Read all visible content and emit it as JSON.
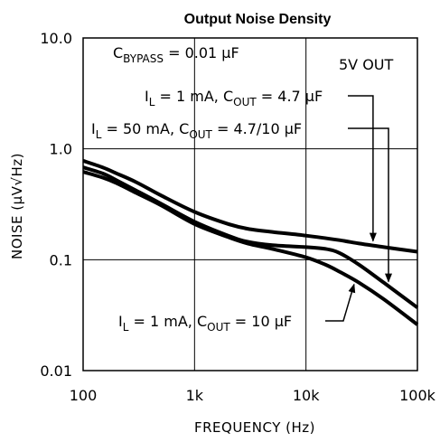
{
  "chart_data": {
    "type": "line",
    "title": "Output Noise Density",
    "xlabel": "FREQUENCY (Hz)",
    "ylabel": "NOISE (µV√Hz)",
    "x_scale": "log",
    "y_scale": "log",
    "xlim": [
      100,
      100000
    ],
    "ylim": [
      0.01,
      10
    ],
    "x_ticks": [
      "100",
      "1k",
      "10k",
      "100k"
    ],
    "y_ticks": [
      "0.01",
      "0.1",
      "1.0",
      "10.0"
    ],
    "grid": true,
    "series": [
      {
        "name": "IL = 1 mA, COUT = 4.7 µF",
        "x": [
          100,
          150,
          200,
          300,
          500,
          1000,
          2000,
          3000,
          5000,
          10000,
          20000,
          30000,
          50000,
          100000
        ],
        "y": [
          0.78,
          0.68,
          0.6,
          0.5,
          0.38,
          0.27,
          0.21,
          0.19,
          0.178,
          0.165,
          0.15,
          0.14,
          0.13,
          0.118
        ]
      },
      {
        "name": "IL = 50 mA, COUT = 4.7/10 µF",
        "x": [
          100,
          150,
          200,
          300,
          500,
          1000,
          2000,
          3000,
          5000,
          10000,
          15000,
          20000,
          30000,
          50000,
          100000
        ],
        "y": [
          0.68,
          0.6,
          0.52,
          0.42,
          0.32,
          0.22,
          0.165,
          0.145,
          0.135,
          0.13,
          0.125,
          0.115,
          0.09,
          0.062,
          0.037
        ]
      },
      {
        "name": "IL = 1 mA, COUT = 10 µF",
        "x": [
          100,
          150,
          200,
          300,
          500,
          1000,
          2000,
          3000,
          5000,
          10000,
          15000,
          20000,
          30000,
          50000,
          100000
        ],
        "y": [
          0.62,
          0.55,
          0.49,
          0.4,
          0.31,
          0.21,
          0.16,
          0.14,
          0.125,
          0.105,
          0.09,
          0.078,
          0.062,
          0.044,
          0.026
        ]
      }
    ]
  },
  "annotations": {
    "bypass": {
      "main": "C",
      "sub": "BYPASS",
      "rest": " = 0.01 µF"
    },
    "vout": "5V OUT",
    "label_a": {
      "p1": "I",
      "s1": "L",
      "p2": " = 1 mA, C",
      "s2": "OUT",
      "p3": " = 4.7 µF"
    },
    "label_b": {
      "p1": "I",
      "s1": "L",
      "p2": " = 50 mA, C",
      "s2": "OUT",
      "p3": " = 4.7/10 µF"
    },
    "label_c": {
      "p1": "I",
      "s1": "L",
      "p2": " = 1 mA, C",
      "s2": "OUT",
      "p3": " = 10 µF"
    }
  }
}
